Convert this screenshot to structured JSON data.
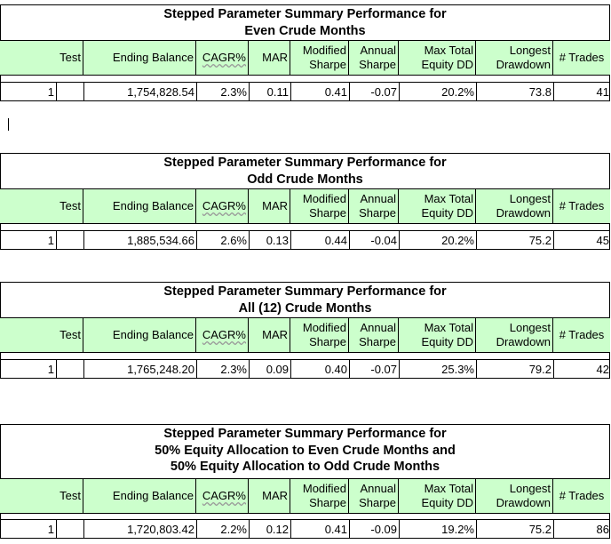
{
  "headers": {
    "test": "Test",
    "ending_balance": "Ending Balance",
    "cagr": "CAGR%",
    "mar": "MAR",
    "modified_sharpe_1": "Modified",
    "modified_sharpe_2": "Sharpe",
    "annual_sharpe_1": "Annual",
    "annual_sharpe_2": "Sharpe",
    "max_dd_1": "Max Total",
    "max_dd_2": "Equity DD",
    "longest_dd_1": "Longest",
    "longest_dd_2": "Drawdown",
    "trades": "# Trades"
  },
  "tables": [
    {
      "title_lines": [
        "Stepped Parameter Summary Performance for",
        "Even Crude Months"
      ],
      "row": {
        "test": "1",
        "ending_balance": "1,754,828.54",
        "cagr": "2.3%",
        "mar": "0.11",
        "modified_sharpe": "0.41",
        "annual_sharpe": "-0.07",
        "max_dd": "20.2%",
        "longest_dd": "73.8",
        "trades": "41"
      }
    },
    {
      "title_lines": [
        "Stepped Parameter Summary Performance for",
        "Odd Crude Months"
      ],
      "row": {
        "test": "1",
        "ending_balance": "1,885,534.66",
        "cagr": "2.6%",
        "mar": "0.13",
        "modified_sharpe": "0.44",
        "annual_sharpe": "-0.04",
        "max_dd": "20.2%",
        "longest_dd": "75.2",
        "trades": "45"
      }
    },
    {
      "title_lines": [
        "Stepped Parameter Summary Performance for",
        "All (12) Crude Months"
      ],
      "row": {
        "test": "1",
        "ending_balance": "1,765,248.20",
        "cagr": "2.3%",
        "mar": "0.09",
        "modified_sharpe": "0.40",
        "annual_sharpe": "-0.07",
        "max_dd": "25.3%",
        "longest_dd": "79.2",
        "trades": "42"
      }
    },
    {
      "title_lines": [
        "Stepped Parameter Summary Performance for",
        "50% Equity Allocation to Even Crude Months and",
        "50% Equity Allocation to Odd Crude Months"
      ],
      "row": {
        "test": "1",
        "ending_balance": "1,720,803.42",
        "cagr": "2.2%",
        "mar": "0.12",
        "modified_sharpe": "0.41",
        "annual_sharpe": "-0.09",
        "max_dd": "19.2%",
        "longest_dd": "75.2",
        "trades": "86"
      }
    }
  ]
}
